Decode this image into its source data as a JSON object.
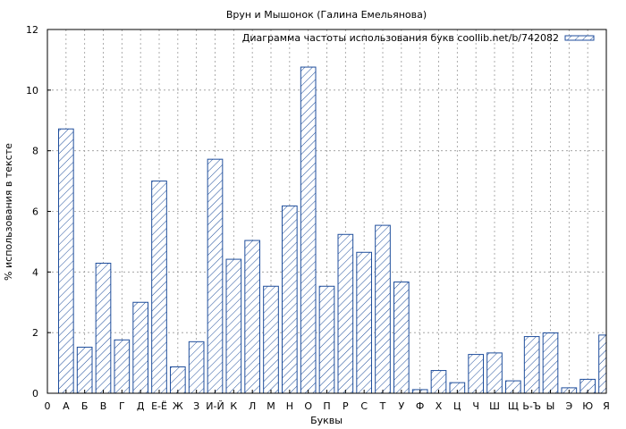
{
  "chart_data": {
    "type": "bar",
    "title": "Врун и Мышонок (Галина Емельянова)",
    "xlabel": "Буквы",
    "ylabel": "% использования в тексте",
    "legend_label": "Диаграмма частоты использования букв coollib.net/b/742082",
    "legend_position": "top-right",
    "grid": true,
    "ylim": [
      0,
      12
    ],
    "y_ticks": [
      0,
      2,
      4,
      6,
      8,
      10,
      12
    ],
    "x_ticks": [
      "0",
      "А",
      "Б",
      "В",
      "Г",
      "Д",
      "Е-Ё",
      "Ж",
      "З",
      "И-Й",
      "К",
      "Л",
      "М",
      "Н",
      "О",
      "П",
      "Р",
      "С",
      "Т",
      "У",
      "Ф",
      "Х",
      "Ц",
      "Ч",
      "Ш",
      "Щ",
      "Ь-Ъ",
      "Ы",
      "Э",
      "Ю",
      "Я"
    ],
    "categories": [
      "А",
      "Б",
      "В",
      "Г",
      "Д",
      "Е-Ё",
      "Ж",
      "З",
      "И-Й",
      "К",
      "Л",
      "М",
      "Н",
      "О",
      "П",
      "Р",
      "С",
      "Т",
      "У",
      "Ф",
      "Х",
      "Ц",
      "Ч",
      "Ш",
      "Щ",
      "Ь-Ъ",
      "Ы",
      "Э",
      "Ю",
      "Я"
    ],
    "values": [
      8.72,
      1.52,
      4.29,
      1.76,
      3.0,
      7.0,
      0.87,
      1.7,
      7.72,
      4.42,
      5.04,
      3.53,
      6.18,
      10.76,
      3.53,
      5.24,
      4.65,
      5.54,
      3.67,
      0.12,
      0.75,
      0.35,
      1.28,
      1.33,
      0.41,
      1.87,
      1.99,
      0.18,
      0.46,
      1.92
    ],
    "colors": {
      "bar_stroke": "#1f4e9c",
      "hatch": "#1f4e9c",
      "grid": "#999999",
      "axis": "#000000"
    }
  }
}
